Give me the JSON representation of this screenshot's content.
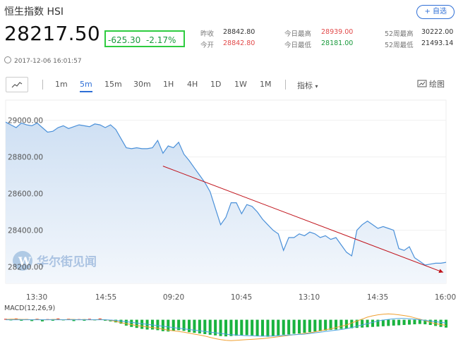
{
  "header": {
    "index_name": "恒生指数 HSI",
    "add_button": "+ 自选",
    "price": "28217.50",
    "change": "-625.30",
    "change_pct": "-2.17%",
    "timestamp": "2017-12-06 16:01:57"
  },
  "stats": {
    "prev_close_label": "昨收",
    "prev_close": "28842.80",
    "open_label": "今开",
    "open": "28842.80",
    "high_label": "今日最高",
    "high": "28939.00",
    "low_label": "今日最低",
    "low": "28181.00",
    "wk52_high_label": "52周最高",
    "wk52_high": "30222.00",
    "wk52_low_label": "52周最低",
    "wk52_low": "21493.14"
  },
  "toolbar": {
    "periods": [
      "1m",
      "5m",
      "15m",
      "30m",
      "1H",
      "4H",
      "1D",
      "1W",
      "1M"
    ],
    "active_period": "5m",
    "indicator_label": "指标",
    "draw_label": "绘图"
  },
  "watermark": "华尔街见闻",
  "chart_data": {
    "type": "area",
    "x_ticks": [
      "13:30",
      "14:55",
      "09:20",
      "10:45",
      "13:10",
      "14:35",
      "16:00"
    ],
    "y_ticks": [
      29000.0,
      28800.0,
      28600.0,
      28400.0,
      28200.0
    ],
    "y_tick_labels": [
      "29000.00",
      "28800.00",
      "28600.00",
      "28400.00",
      "28200.00"
    ],
    "ylim": [
      28110,
      29110
    ],
    "series": [
      {
        "values": [
          28990,
          28975,
          28960,
          28985,
          28975,
          28970,
          28985,
          28960,
          28935,
          28940,
          28960,
          28970,
          28955,
          28965,
          28975,
          28970,
          28965,
          28980,
          28975,
          28960,
          28975,
          28950,
          28900,
          28850,
          28845,
          28850,
          28845,
          28845,
          28850,
          28890,
          28820,
          28860,
          28850,
          28880,
          28815,
          28780,
          28740,
          28700,
          28660,
          28610,
          28520,
          28430,
          28470,
          28550,
          28550,
          28490,
          28540,
          28530,
          28500,
          28460,
          28430,
          28400,
          28380,
          28290,
          28360,
          28360,
          28380,
          28370,
          28390,
          28380,
          28360,
          28370,
          28350,
          28360,
          28320,
          28280,
          28260,
          28400,
          28430,
          28450,
          28430,
          28410,
          28420,
          28410,
          28400,
          28300,
          28290,
          28310,
          28250,
          28230,
          28210,
          28215,
          28220,
          28220,
          28225
        ]
      }
    ],
    "annotation": {
      "type": "arrow",
      "color": "#c0121a",
      "from": {
        "x_index": 30,
        "y": 28750
      },
      "to": {
        "x_index": 84,
        "y": 28170
      }
    },
    "macd": {
      "label": "MACD(12,26,9)",
      "bull_color": "#e24a4a",
      "bear_color": "#19b33f",
      "dif_color": "#f0a030",
      "dea_color": "#4aa3df",
      "hist": [
        0.3,
        -0.2,
        0.4,
        -0.3,
        0.2,
        -0.4,
        0.3,
        -0.5,
        0.2,
        -0.3,
        0.4,
        -0.2,
        0.3,
        -0.4,
        0.2,
        -0.3,
        0.3,
        -0.2,
        0.4,
        -0.3,
        -0.5,
        -0.8,
        -1.2,
        -1.8,
        -2.2,
        -2.5,
        -2.8,
        -3.0,
        -3.0,
        -3.2,
        -3.5,
        -3.6,
        -3.4,
        -3.2,
        -3.4,
        -3.8,
        -4.0,
        -4.2,
        -4.4,
        -4.6,
        -4.8,
        -5.0,
        -5.1,
        -5.0,
        -4.9,
        -4.8,
        -4.7,
        -4.8,
        -5.0,
        -5.1,
        -5.2,
        -5.0,
        -4.8,
        -4.6,
        -4.5,
        -4.3,
        -4.2,
        -4.0,
        -3.8,
        -3.6,
        -3.5,
        -3.3,
        -3.1,
        -3.0,
        -2.8,
        -2.7,
        -2.6,
        -2.5,
        -2.4,
        -2.3,
        -2.2,
        -2.1,
        -2.0,
        -1.9,
        -1.8,
        -1.7,
        -1.6,
        -1.5,
        -1.4,
        -1.3,
        -1.4,
        -1.6,
        -1.9,
        -2.2,
        -2.4
      ],
      "dif": [
        0.1,
        0.2,
        0.2,
        0.1,
        0.1,
        0.0,
        0.1,
        0.0,
        0.0,
        0.1,
        0.1,
        0.0,
        0.1,
        0.1,
        0.0,
        0.1,
        0.0,
        0.0,
        0.1,
        0.0,
        -0.2,
        -0.5,
        -0.9,
        -1.2,
        -1.5,
        -1.8,
        -2.0,
        -2.2,
        -2.4,
        -2.6,
        -2.9,
        -3.2,
        -3.4,
        -3.6,
        -3.8,
        -4.1,
        -4.4,
        -4.7,
        -5.0,
        -5.4,
        -5.8,
        -6.1,
        -6.3,
        -6.4,
        -6.3,
        -6.2,
        -6.1,
        -6.0,
        -5.9,
        -5.8,
        -5.6,
        -5.4,
        -5.2,
        -5.0,
        -4.8,
        -4.6,
        -4.4,
        -4.2,
        -4.0,
        -3.7,
        -3.4,
        -3.1,
        -2.8,
        -2.4,
        -2.0,
        -1.6,
        -1.0,
        -0.4,
        0.2,
        0.8,
        1.2,
        1.5,
        1.7,
        1.8,
        1.7,
        1.5,
        1.3,
        1.0,
        0.6,
        0.2,
        -0.3,
        -0.8,
        -1.2,
        -1.5,
        -1.7
      ],
      "dea": [
        0.0,
        0.0,
        0.0,
        0.0,
        0.0,
        0.0,
        0.0,
        0.0,
        0.0,
        0.0,
        0.0,
        0.0,
        0.0,
        0.0,
        0.0,
        0.0,
        0.0,
        0.0,
        0.0,
        0.0,
        -0.1,
        -0.2,
        -0.4,
        -0.6,
        -0.8,
        -1.0,
        -1.2,
        -1.4,
        -1.6,
        -1.8,
        -2.0,
        -2.2,
        -2.4,
        -2.6,
        -2.8,
        -3.0,
        -3.2,
        -3.4,
        -3.6,
        -3.8,
        -4.0,
        -4.2,
        -4.4,
        -4.6,
        -4.7,
        -4.8,
        -4.9,
        -4.9,
        -5.0,
        -5.0,
        -5.0,
        -5.0,
        -4.9,
        -4.8,
        -4.7,
        -4.6,
        -4.5,
        -4.4,
        -4.2,
        -4.0,
        -3.8,
        -3.6,
        -3.4,
        -3.2,
        -3.0,
        -2.7,
        -2.4,
        -2.0,
        -1.6,
        -1.2,
        -0.8,
        -0.4,
        -0.1,
        0.1,
        0.3,
        0.4,
        0.4,
        0.3,
        0.2,
        0.0,
        -0.2,
        -0.4,
        -0.6,
        -0.8,
        -1.0
      ],
      "ylim": [
        -7,
        2.5
      ]
    }
  }
}
